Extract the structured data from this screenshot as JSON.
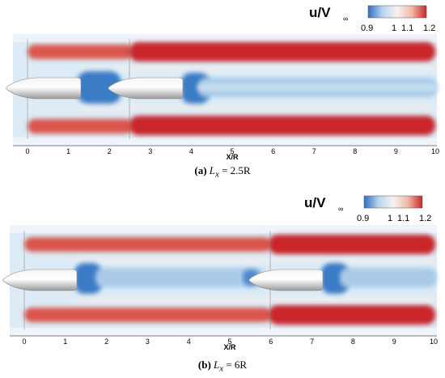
{
  "figures": [
    {
      "id": "a",
      "caption_tag": "(a)",
      "caption_expr": "L",
      "caption_sub": "x",
      "caption_value": "= 2.5R",
      "colorbar": {
        "title_main": "u/V",
        "title_sub": "∞",
        "ticks": [
          "0.9",
          "1",
          "1.1",
          "1.2"
        ],
        "colors": [
          "#2f6fc1",
          "#b8d6ee",
          "#f6f3f1",
          "#f0b9a6",
          "#c8272a"
        ]
      },
      "axis": {
        "label": "X/R",
        "ticks": [
          "0",
          "1",
          "2",
          "3",
          "4",
          "5",
          "6",
          "7",
          "8",
          "9",
          "10"
        ]
      },
      "bodies_x": [
        0,
        2.5
      ]
    },
    {
      "id": "b",
      "caption_tag": "(b)",
      "caption_expr": "L",
      "caption_sub": "x",
      "caption_value": "= 6R",
      "colorbar": {
        "title_main": "u/V",
        "title_sub": "∞",
        "ticks": [
          "0.9",
          "1",
          "1.1",
          "1.2"
        ],
        "colors": [
          "#2f6fc1",
          "#b8d6ee",
          "#f6f3f1",
          "#f0b9a6",
          "#c8272a"
        ]
      },
      "axis": {
        "label": "X/R",
        "ticks": [
          "0",
          "1",
          "2",
          "3",
          "4",
          "5",
          "6",
          "7",
          "8",
          "9",
          "10"
        ]
      },
      "bodies_x": [
        0,
        6
      ]
    }
  ]
}
